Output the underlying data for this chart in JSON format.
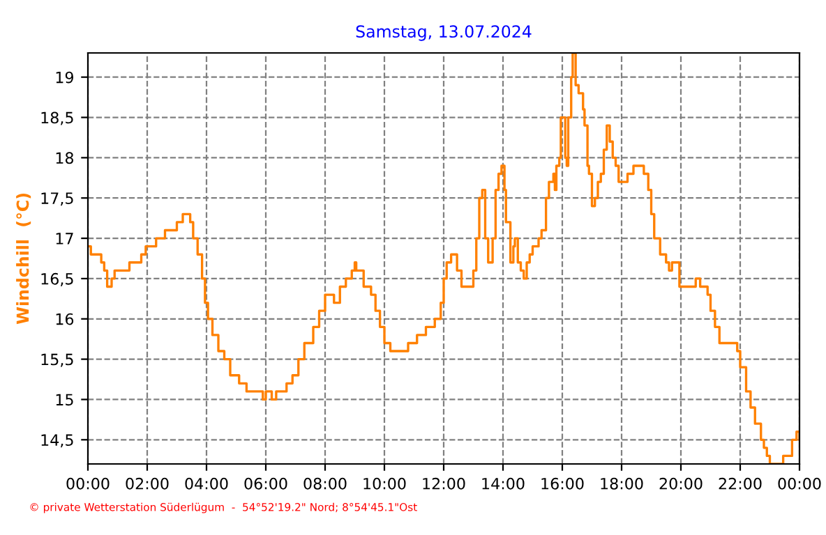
{
  "chart_data": {
    "type": "step",
    "title": "Samstag, 13.07.2024",
    "ylabel": "Windchill  (°C)",
    "annotations": [
      "© private Wetterstation Süderlügum  -  54°52'19.2\" Nord; 8°54'45.1\"Ost"
    ],
    "xlim": [
      0,
      24
    ],
    "ylim": [
      14.2,
      19.3
    ],
    "xticks": [
      {
        "value": 0,
        "label": "00:00"
      },
      {
        "value": 2,
        "label": "02:00"
      },
      {
        "value": 4,
        "label": "04:00"
      },
      {
        "value": 6,
        "label": "06:00"
      },
      {
        "value": 8,
        "label": "08:00"
      },
      {
        "value": 10,
        "label": "10:00"
      },
      {
        "value": 12,
        "label": "12:00"
      },
      {
        "value": 14,
        "label": "14:00"
      },
      {
        "value": 16,
        "label": "16:00"
      },
      {
        "value": 18,
        "label": "18:00"
      },
      {
        "value": 20,
        "label": "20:00"
      },
      {
        "value": 22,
        "label": "22:00"
      },
      {
        "value": 24,
        "label": "00:00"
      }
    ],
    "yticks": [
      {
        "value": 14.5,
        "label": "14,5"
      },
      15,
      {
        "value": 15.5,
        "label": "15,5"
      },
      16,
      {
        "value": 16.5,
        "label": "16,5"
      },
      17,
      {
        "value": 17.5,
        "label": "17,5"
      },
      18,
      {
        "value": 18.5,
        "label": "18,5"
      },
      19
    ],
    "grid": true,
    "legend": false,
    "line_style": "solid",
    "marker": "none",
    "series": [
      {
        "color": "#ff8000",
        "x": [
          0,
          0.1,
          0.45,
          0.55,
          0.65,
          0.8,
          0.9,
          1.4,
          1.8,
          1.95,
          2.3,
          2.6,
          3.0,
          3.2,
          3.45,
          3.55,
          3.7,
          3.85,
          3.95,
          4.05,
          4.2,
          4.4,
          4.6,
          4.8,
          5.1,
          5.35,
          5.9,
          6.0,
          6.2,
          6.35,
          6.7,
          6.9,
          7.1,
          7.3,
          7.6,
          7.8,
          8.0,
          8.3,
          8.5,
          8.7,
          8.9,
          9.0,
          9.05,
          9.3,
          9.55,
          9.7,
          9.85,
          10.0,
          10.2,
          10.8,
          11.1,
          11.4,
          11.7,
          11.9,
          12.0,
          12.1,
          12.25,
          12.45,
          12.6,
          12.9,
          13.0,
          13.1,
          13.2,
          13.3,
          13.4,
          13.5,
          13.65,
          13.75,
          13.85,
          13.95,
          14.05,
          14.1,
          14.25,
          14.35,
          14.4,
          14.5,
          14.6,
          14.7,
          14.8,
          14.9,
          15.0,
          15.2,
          15.3,
          15.45,
          15.55,
          15.7,
          15.75,
          15.8,
          15.9,
          15.95,
          16.05,
          16.1,
          16.15,
          16.2,
          16.3,
          16.35,
          16.45,
          16.55,
          16.7,
          16.75,
          16.85,
          16.9,
          17.0,
          17.1,
          17.2,
          17.3,
          17.4,
          17.5,
          17.6,
          17.7,
          17.8,
          17.9,
          18.1,
          18.2,
          18.4,
          18.6,
          18.75,
          18.9,
          19.0,
          19.1,
          19.3,
          19.5,
          19.6,
          19.7,
          19.95,
          20.1,
          20.5,
          20.65,
          20.9,
          21.0,
          21.15,
          21.3,
          21.9,
          22.0,
          22.2,
          22.35,
          22.5,
          22.7,
          22.8,
          22.9,
          23.0,
          23.45,
          23.75,
          23.9,
          24.0
        ],
        "values": [
          16.9,
          16.8,
          16.7,
          16.6,
          16.4,
          16.5,
          16.6,
          16.7,
          16.8,
          16.9,
          17.0,
          17.1,
          17.2,
          17.3,
          17.2,
          17.0,
          16.8,
          16.5,
          16.2,
          16.0,
          15.8,
          15.6,
          15.5,
          15.3,
          15.2,
          15.1,
          15.0,
          15.1,
          15.0,
          15.1,
          15.2,
          15.3,
          15.5,
          15.7,
          15.9,
          16.1,
          16.3,
          16.2,
          16.4,
          16.5,
          16.6,
          16.7,
          16.6,
          16.4,
          16.3,
          16.1,
          15.9,
          15.7,
          15.6,
          15.7,
          15.8,
          15.9,
          16.0,
          16.2,
          16.5,
          16.7,
          16.8,
          16.6,
          16.4,
          16.4,
          16.6,
          17.0,
          17.5,
          17.6,
          17.0,
          16.7,
          17.0,
          17.6,
          17.8,
          17.9,
          17.6,
          17.2,
          16.7,
          16.9,
          17.0,
          16.7,
          16.6,
          16.5,
          16.7,
          16.8,
          16.9,
          17.0,
          17.1,
          17.5,
          17.7,
          17.8,
          17.6,
          17.9,
          18.0,
          18.5,
          18.5,
          18.0,
          17.9,
          18.5,
          19.0,
          19.3,
          18.9,
          18.8,
          18.6,
          18.4,
          17.9,
          17.8,
          17.4,
          17.5,
          17.7,
          17.8,
          18.1,
          18.4,
          18.2,
          18.0,
          17.9,
          17.7,
          17.7,
          17.8,
          17.9,
          17.9,
          17.8,
          17.6,
          17.3,
          17.0,
          16.8,
          16.7,
          16.6,
          16.7,
          16.4,
          16.4,
          16.5,
          16.4,
          16.3,
          16.1,
          15.9,
          15.7,
          15.6,
          15.4,
          15.1,
          14.9,
          14.7,
          14.5,
          14.4,
          14.3,
          14.2,
          14.3,
          14.5,
          14.6,
          14.5
        ]
      }
    ]
  }
}
